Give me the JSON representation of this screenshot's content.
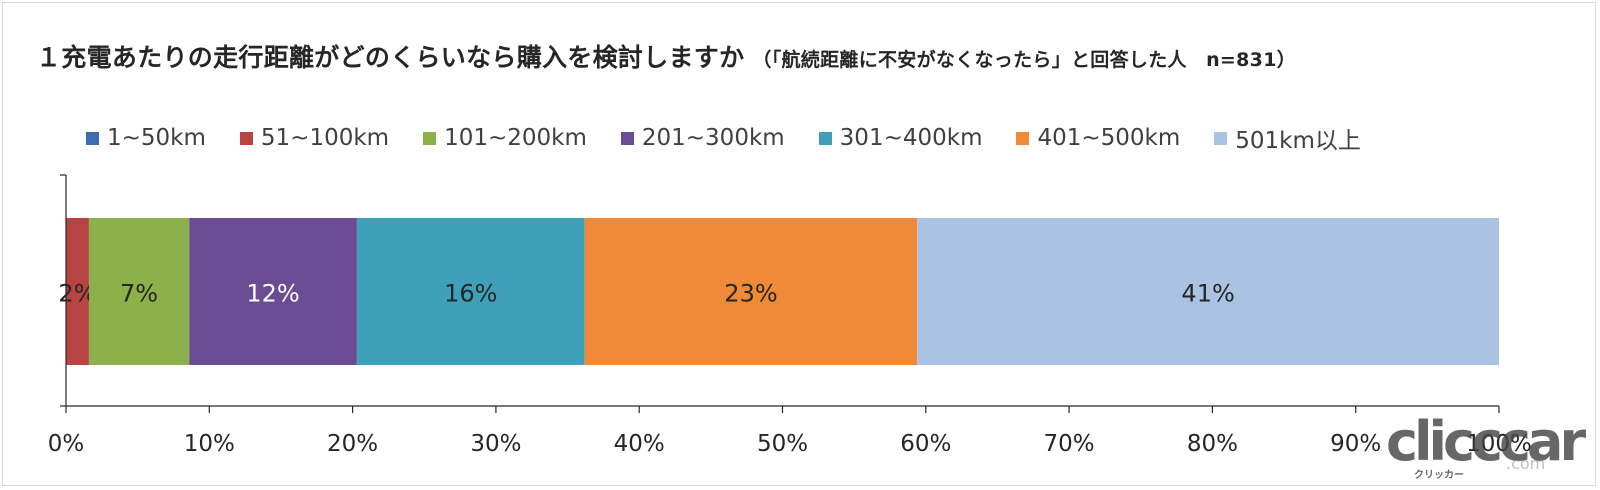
{
  "chart_data": {
    "type": "bar",
    "orientation": "horizontal",
    "stacked": true,
    "title": "１充電あたりの走行距離がどのくらいなら購入を検討しますか",
    "subtitle": "（「航続距離に不安がなくなったら」と回答した人　n=831）",
    "categories": [
      ""
    ],
    "series": [
      {
        "name": "1~50km",
        "values": [
          0
        ],
        "label": "",
        "color": "#3d6db0",
        "label_color": "#262626"
      },
      {
        "name": "51~100km",
        "values": [
          1.6
        ],
        "label": "2%",
        "color": "#b94342",
        "label_color": "#262626"
      },
      {
        "name": "101~200km",
        "values": [
          7.0
        ],
        "label": "7%",
        "color": "#8cb04a",
        "label_color": "#262626"
      },
      {
        "name": "201~300km",
        "values": [
          11.7
        ],
        "label": "12%",
        "color": "#6b4c94",
        "label_color": "#ffffff"
      },
      {
        "name": "301~400km",
        "values": [
          15.9
        ],
        "label": "16%",
        "color": "#3fa0b9",
        "label_color": "#262626"
      },
      {
        "name": "401~500km",
        "values": [
          23.2
        ],
        "label": "23%",
        "color": "#f08a37",
        "label_color": "#262626"
      },
      {
        "name": "501km以上",
        "values": [
          40.6
        ],
        "label": "41%",
        "color": "#abc3e2",
        "label_color": "#262626"
      }
    ],
    "xlim": [
      0,
      100
    ],
    "xticks": [
      "0%",
      "10%",
      "20%",
      "30%",
      "40%",
      "50%",
      "60%",
      "70%",
      "80%",
      "90%",
      "100%"
    ],
    "xlabel": "",
    "ylabel": "",
    "legend_position": "top",
    "grid": false
  },
  "watermark": {
    "text": "clicccar",
    "sub": "クリッカー",
    "suffix": ".com"
  }
}
